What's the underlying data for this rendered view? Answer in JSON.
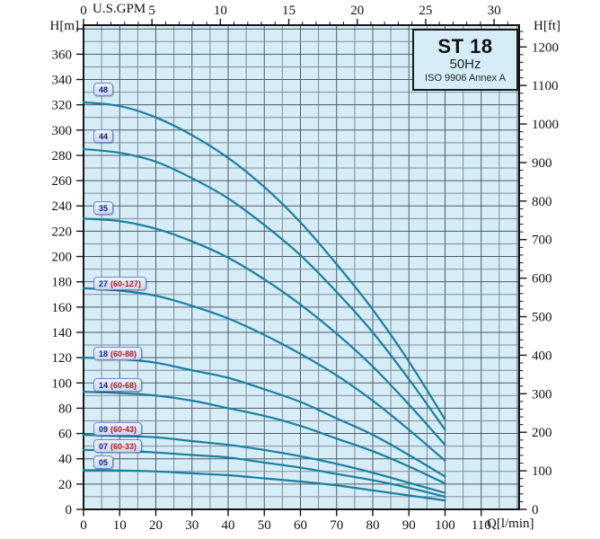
{
  "colors": {
    "background": "#ffffff",
    "plot_bg": "#d6edf8",
    "grid_minor": "#7f8c98",
    "grid_major": "#4f5a66",
    "frame": "#151515",
    "tick": "#151515",
    "tick_text": "#111111",
    "curve": "#1a7f9e",
    "label_text": "#14227a",
    "label_range_text": "#b01c1c"
  },
  "title_box": {
    "model": "ST 18",
    "frequency": "50Hz",
    "standard": "ISO 9906 Annex A"
  },
  "axis_units": {
    "left": "H[m]",
    "right": "H[ft]",
    "bottom": "Q[l/min]",
    "top": "U.S.GPM"
  },
  "chart_data": {
    "type": "line",
    "title": "ST 18 50Hz pump performance curves, ISO 9906 Annex A",
    "x_label": "Q[l/min]",
    "x_top_label": "U.S.GPM",
    "y_left_label": "H[m]",
    "y_right_label": "H[ft]",
    "x": [
      0,
      10,
      20,
      30,
      40,
      50,
      60,
      70,
      80,
      90,
      100
    ],
    "xlim": [
      0,
      120.5
    ],
    "ylim": [
      0,
      383
    ],
    "grid": {
      "x_minor_step": 5,
      "y_minor_step": 10
    },
    "ticks": {
      "bottom": {
        "step": 10,
        "labels": [
          "0",
          "10",
          "20",
          "30",
          "40",
          "50",
          "60",
          "70",
          "80",
          "90",
          "100",
          "110"
        ]
      },
      "top": {
        "lmin_per_gpm": 3.7854,
        "minor_step": 1,
        "major_step": 5,
        "max_minor": 31,
        "labels": [
          "0",
          "5",
          "10",
          "15",
          "20",
          "25",
          "30"
        ]
      },
      "left": {
        "step": 20,
        "max_tick": 380,
        "labels": [
          "0",
          "20",
          "40",
          "60",
          "80",
          "100",
          "120",
          "140",
          "160",
          "180",
          "200",
          "220",
          "240",
          "260",
          "280",
          "300",
          "320",
          "340",
          "360"
        ]
      },
      "right": {
        "m_per_ft": 0.3048,
        "minor_step": 20,
        "major_step": 100,
        "max_minor": 1240,
        "labels": [
          "0",
          "100",
          "200",
          "300",
          "400",
          "500",
          "600",
          "700",
          "800",
          "900",
          "1000",
          "1100",
          "1200"
        ]
      }
    },
    "series": [
      {
        "name": "48",
        "range": "",
        "label_h": 332,
        "values": [
          322,
          319,
          310,
          296,
          278,
          255,
          227,
          194,
          158,
          117,
          71
        ]
      },
      {
        "name": "44",
        "range": "",
        "label_h": 295,
        "values": [
          285,
          282,
          275,
          262,
          246,
          225,
          201,
          172,
          140,
          103,
          63
        ]
      },
      {
        "name": "35",
        "range": "",
        "label_h": 238,
        "values": [
          230,
          228,
          222,
          212,
          199,
          182,
          162,
          139,
          113,
          83,
          51
        ]
      },
      {
        "name": "27",
        "range": "(60-127)",
        "label_h": 178,
        "values": [
          175,
          173,
          169,
          161,
          151,
          138,
          123,
          106,
          86,
          63,
          38.5
        ]
      },
      {
        "name": "18",
        "range": "(60-88)",
        "label_h": 123,
        "values": [
          120,
          119,
          116,
          110,
          104,
          95,
          85,
          72,
          59,
          43,
          26
        ]
      },
      {
        "name": "14",
        "range": "(60-68)",
        "label_h": 98,
        "values": [
          93,
          92,
          90,
          86,
          80,
          74,
          66,
          56,
          46,
          34,
          20.5
        ]
      },
      {
        "name": "09",
        "range": "(60-43)",
        "label_h": 63,
        "values": [
          59,
          58,
          57,
          54,
          51,
          47,
          42,
          36,
          29,
          21,
          13
        ]
      },
      {
        "name": "07",
        "range": "(60-33)",
        "label_h": 50,
        "values": [
          47,
          46.5,
          45,
          43,
          41,
          37,
          33,
          28,
          23,
          17,
          10
        ]
      },
      {
        "name": "05",
        "range": "",
        "label_h": 37,
        "values": [
          31,
          30.7,
          30,
          28.5,
          27,
          24.5,
          22,
          19,
          15,
          11,
          7
        ]
      }
    ]
  }
}
